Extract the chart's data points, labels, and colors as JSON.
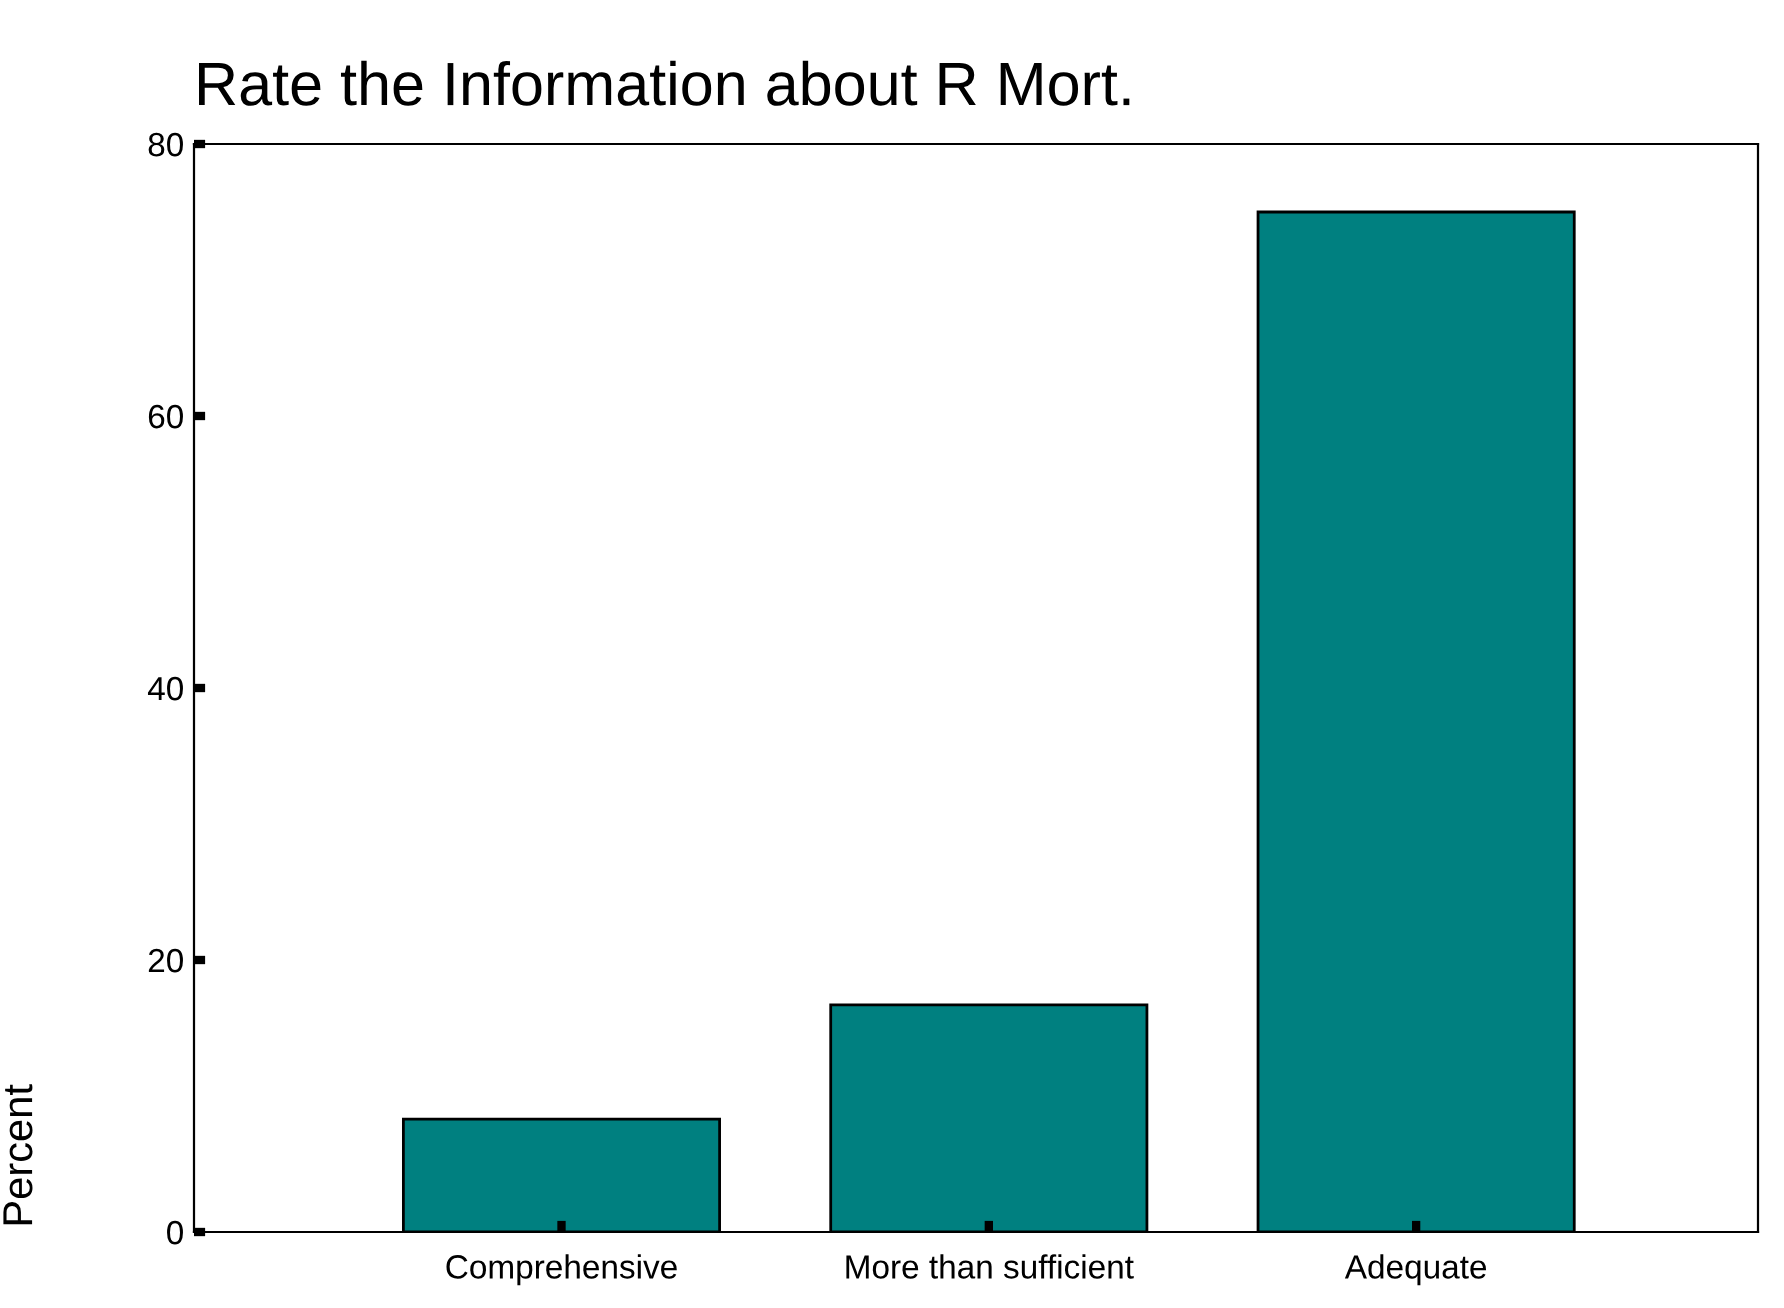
{
  "chart_data": {
    "type": "bar",
    "title": "Rate the Information about R Mort.",
    "ylabel": "Percent",
    "categories": [
      "Comprehensive",
      "More than sufficient",
      "Adequate"
    ],
    "values": [
      8.3,
      16.7,
      75.0
    ],
    "color": "#008080",
    "ylim": [
      0,
      80
    ],
    "yticks": [
      0,
      20,
      40,
      60,
      80
    ],
    "grid": false
  }
}
